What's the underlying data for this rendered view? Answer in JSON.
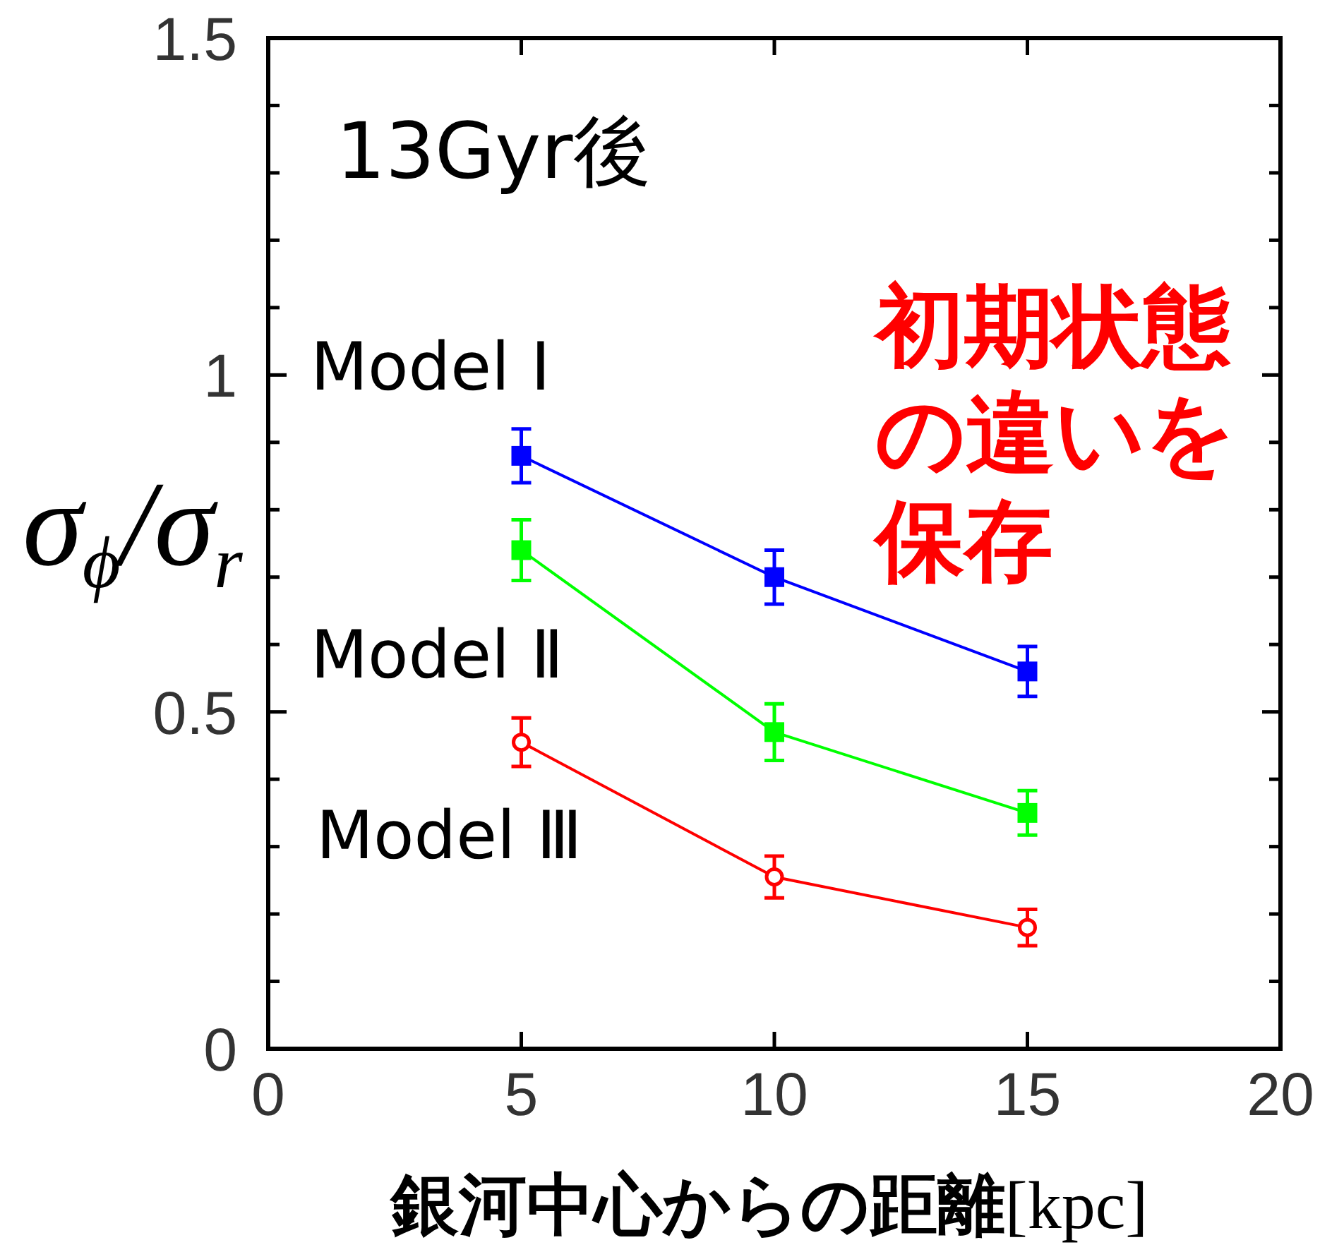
{
  "chart_data": {
    "type": "line",
    "title": "13Gyr後",
    "xlabel": "銀河中心からの距離[kpc]",
    "ylabel": "σ$_{ϕ}$/σ$_{r}$",
    "annotations": [
      "初期状態の違いを保存"
    ],
    "x": [
      5,
      10,
      15
    ],
    "series": [
      {
        "name": "Model Ⅰ",
        "color": "#0000ff",
        "marker": "square",
        "values": [
          0.88,
          0.7,
          0.56
        ],
        "errors": [
          0.04,
          0.04,
          0.037
        ]
      },
      {
        "name": "Model Ⅱ",
        "color": "#00ff00",
        "marker": "square",
        "values": [
          0.74,
          0.47,
          0.35
        ],
        "errors": [
          0.045,
          0.042,
          0.033
        ]
      },
      {
        "name": "Model Ⅲ",
        "color": "#ff0000",
        "marker": "circle",
        "values": [
          0.455,
          0.255,
          0.18
        ],
        "errors": [
          0.036,
          0.031,
          0.027
        ]
      }
    ],
    "xlim": [
      0,
      20
    ],
    "xticks": [
      0,
      5,
      10,
      15,
      20
    ],
    "ylim": [
      0,
      1.5
    ],
    "yticks": [
      0,
      {
        "value": 0.1,
        "label": null
      },
      {
        "value": 0.2,
        "label": null
      },
      {
        "value": 0.3,
        "label": null
      },
      {
        "value": 0.4,
        "label": null
      },
      0.5,
      {
        "value": 0.6,
        "label": null
      },
      {
        "value": 0.7,
        "label": null
      },
      {
        "value": 0.8,
        "label": null
      },
      {
        "value": 0.9,
        "label": null
      },
      1,
      {
        "value": 1.1,
        "label": null
      },
      {
        "value": 1.2,
        "label": null
      },
      {
        "value": 1.3,
        "label": null
      },
      {
        "value": 1.4,
        "label": null
      },
      1.5
    ],
    "grid": false
  }
}
